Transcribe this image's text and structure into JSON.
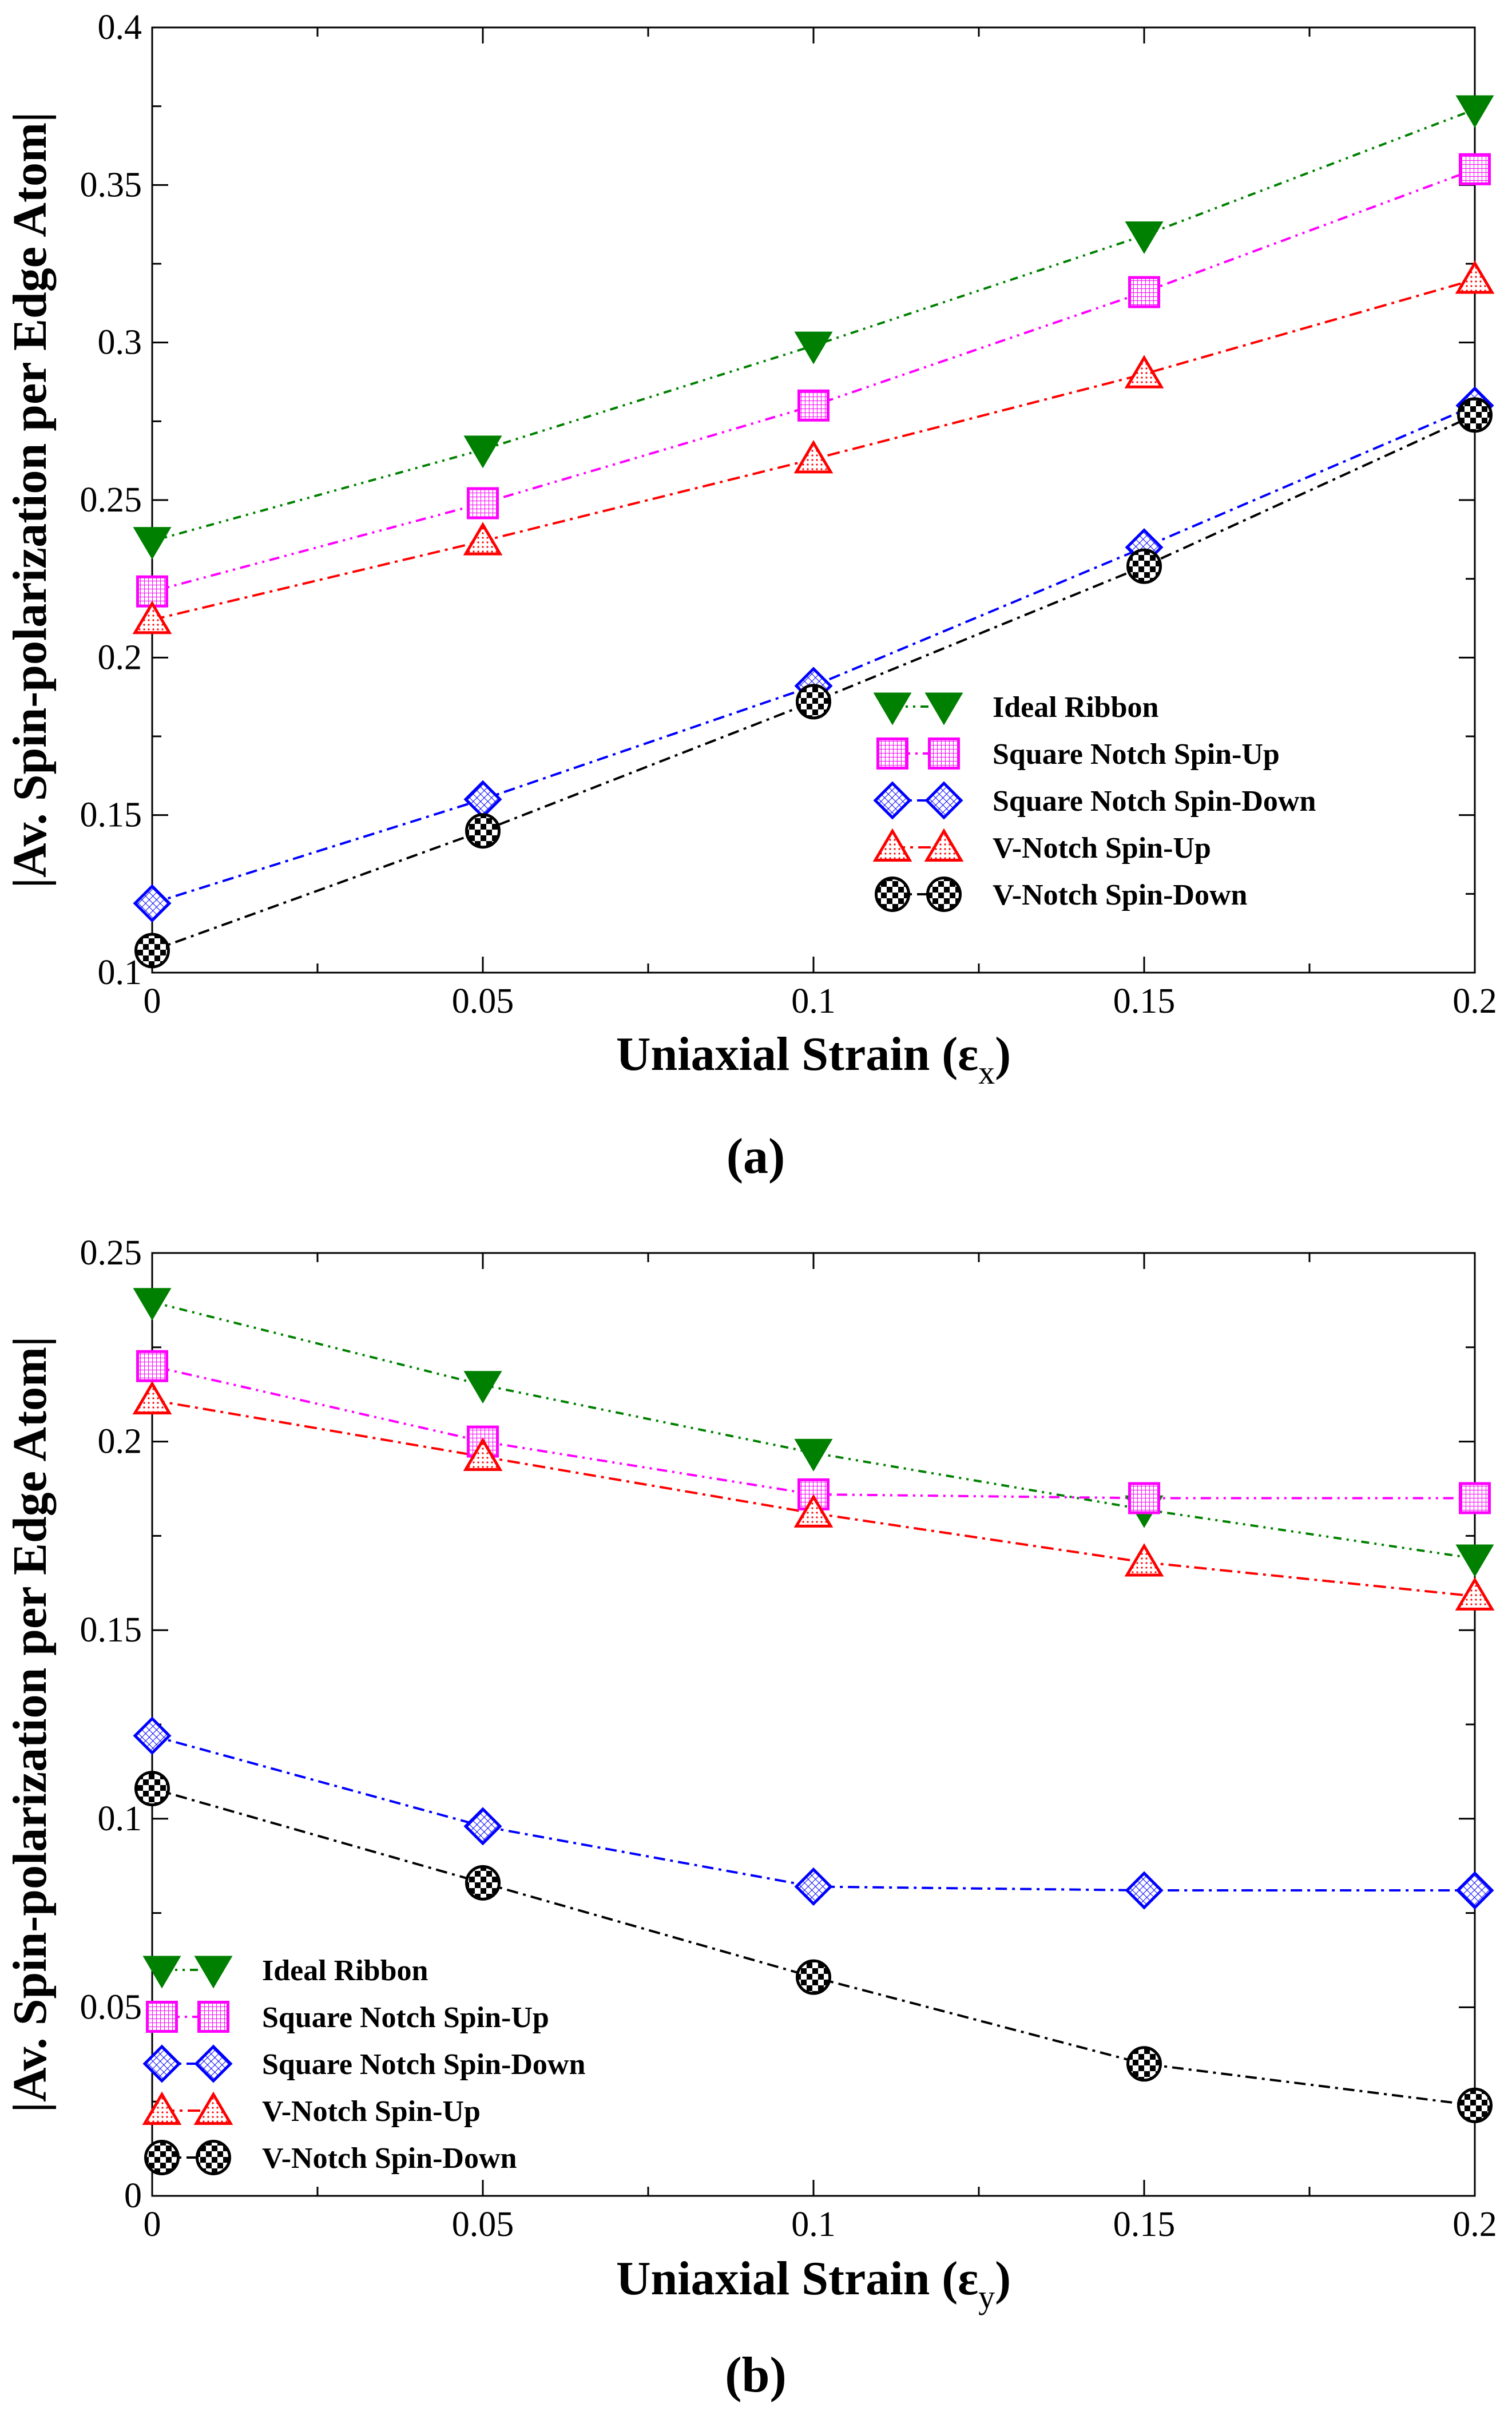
{
  "chart_data": [
    {
      "type": "line",
      "panel_label": "(a)",
      "xlabel": "Uniaxial Strain (ε",
      "xlabel_sub": "x",
      "ylabel": "|Av. Spin-polarization per Edge Atom|",
      "xlim": [
        0,
        0.2
      ],
      "ylim": [
        0.1,
        0.4
      ],
      "xticks": [
        0,
        0.05,
        0.1,
        0.15,
        0.2
      ],
      "xtick_labels": [
        "0",
        "0.05",
        "0.1",
        "0.15",
        "0.2"
      ],
      "yticks": [
        0.1,
        0.15,
        0.2,
        0.25,
        0.3,
        0.35,
        0.4
      ],
      "ytick_labels": [
        "0.1",
        "0.15",
        "0.2",
        "0.25",
        "0.3",
        "0.35",
        "0.4"
      ],
      "legend_position": "center-right",
      "x": [
        0,
        0.05,
        0.1,
        0.15,
        0.2
      ],
      "series": [
        {
          "name": "Ideal Ribbon",
          "color": "#008000",
          "marker": "triangle-down-filled",
          "values": [
            0.237,
            0.266,
            0.299,
            0.334,
            0.374
          ]
        },
        {
          "name": "Square Notch Spin-Up",
          "color": "#ff00ff",
          "marker": "square-grid",
          "values": [
            0.221,
            0.249,
            0.28,
            0.316,
            0.355
          ]
        },
        {
          "name": "Square Notch Spin-Down",
          "color": "#0000ff",
          "marker": "diamond-hatched",
          "values": [
            0.122,
            0.155,
            0.191,
            0.235,
            0.28
          ]
        },
        {
          "name": "V-Notch Spin-Up",
          "color": "#ff0000",
          "marker": "triangle-up-dotted",
          "values": [
            0.212,
            0.237,
            0.263,
            0.29,
            0.32
          ]
        },
        {
          "name": "V-Notch Spin-Down",
          "color": "#000000",
          "marker": "circle-checkered",
          "values": [
            0.107,
            0.145,
            0.186,
            0.229,
            0.277
          ]
        }
      ]
    },
    {
      "type": "line",
      "panel_label": "(b)",
      "xlabel": "Uniaxial Strain (ε",
      "xlabel_sub": "y",
      "ylabel": "|Av. Spin-polarization per Edge Atom|",
      "xlim": [
        0,
        0.2
      ],
      "ylim": [
        0,
        0.25
      ],
      "xticks": [
        0,
        0.05,
        0.1,
        0.15,
        0.2
      ],
      "xtick_labels": [
        "0",
        "0.05",
        "0.1",
        "0.15",
        "0.2"
      ],
      "yticks": [
        0,
        0.05,
        0.1,
        0.15,
        0.2,
        0.25
      ],
      "ytick_labels": [
        "0",
        "0.05",
        "0.1",
        "0.15",
        "0.2",
        "0.25"
      ],
      "legend_position": "bottom-left",
      "x": [
        0,
        0.05,
        0.1,
        0.15,
        0.2
      ],
      "series": [
        {
          "name": "Ideal Ribbon",
          "color": "#008000",
          "marker": "triangle-down-filled",
          "values": [
            0.237,
            0.215,
            0.197,
            0.182,
            0.169
          ]
        },
        {
          "name": "Square Notch Spin-Up",
          "color": "#ff00ff",
          "marker": "square-grid",
          "values": [
            0.22,
            0.2,
            0.186,
            0.185,
            0.185
          ]
        },
        {
          "name": "Square Notch Spin-Down",
          "color": "#0000ff",
          "marker": "diamond-hatched",
          "values": [
            0.122,
            0.098,
            0.082,
            0.081,
            0.081
          ]
        },
        {
          "name": "V-Notch Spin-Up",
          "color": "#ff0000",
          "marker": "triangle-up-dotted",
          "values": [
            0.211,
            0.196,
            0.181,
            0.168,
            0.159
          ]
        },
        {
          "name": "V-Notch Spin-Down",
          "color": "#000000",
          "marker": "circle-checkered",
          "values": [
            0.108,
            0.083,
            0.058,
            0.035,
            0.024
          ]
        }
      ]
    }
  ]
}
